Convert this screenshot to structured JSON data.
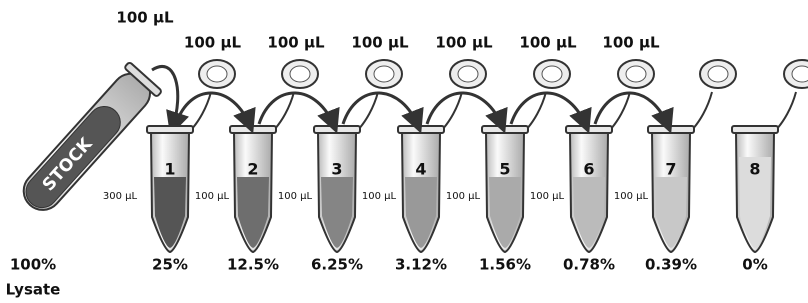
{
  "stock": {
    "label": "STOCK",
    "percent": "100%",
    "sublabel": "Lysate",
    "transfer": "100 µL"
  },
  "transfers": [
    "100 µL",
    "100 µL",
    "100 µL",
    "100 µL",
    "100 µL",
    "100 µL"
  ],
  "side_volumes": [
    "300 µL",
    "100 µL",
    "100 µL",
    "100 µL",
    "100 µL",
    "100 µL",
    "100 µL"
  ],
  "tubes": [
    {
      "number": "1",
      "percent": "25%"
    },
    {
      "number": "2",
      "percent": "12.5%"
    },
    {
      "number": "3",
      "percent": "6.25%"
    },
    {
      "number": "4",
      "percent": "3.12%"
    },
    {
      "number": "5",
      "percent": "1.56%"
    },
    {
      "number": "6",
      "percent": "0.78%"
    },
    {
      "number": "7",
      "percent": "0.39%"
    },
    {
      "number": "8",
      "percent": "0%"
    }
  ]
}
